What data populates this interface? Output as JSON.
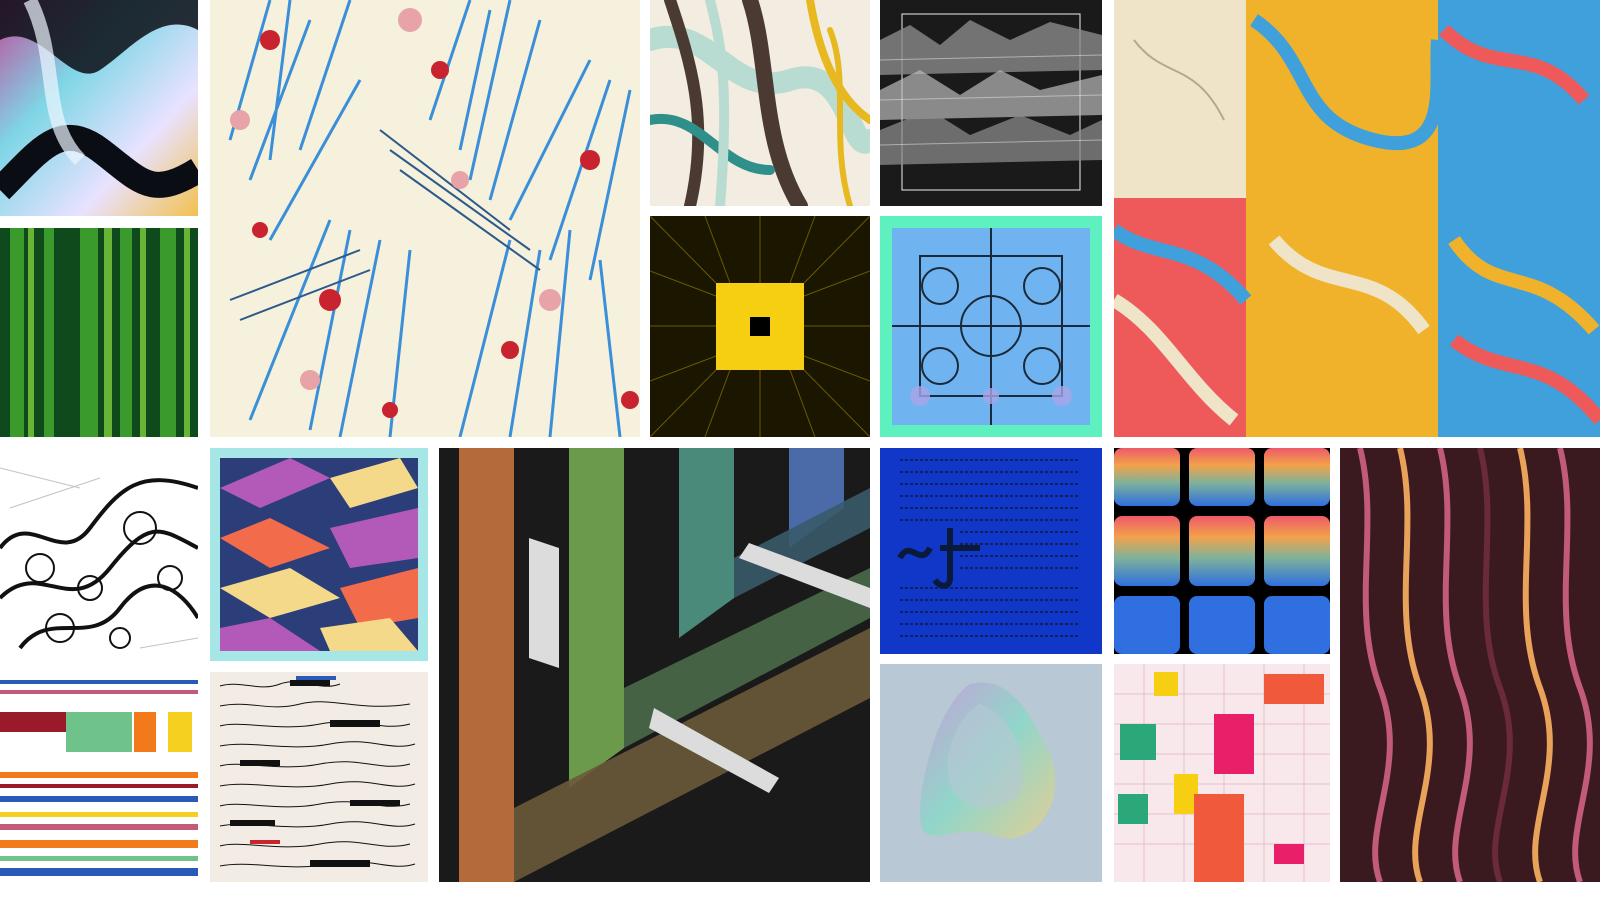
{
  "gallery": {
    "tiles": [
      {
        "id": "iridescent-waves",
        "palette": [
          "#0b0d14",
          "#7fd6e6",
          "#e9e2ff",
          "#f2c14e",
          "#c04a9a"
        ]
      },
      {
        "id": "blue-floral-bursts",
        "palette": [
          "#3a8fd8",
          "#f5f1dc",
          "#c8232f",
          "#e8a3a8",
          "#2d5a8a"
        ]
      },
      {
        "id": "flowing-stripes",
        "palette": [
          "#b9dcd2",
          "#4a3a32",
          "#e8b820",
          "#2f8f8a",
          "#f2ece1"
        ]
      },
      {
        "id": "grey-ridges",
        "palette": [
          "#1a1a1a",
          "#8a8a8a",
          "#ededed"
        ]
      },
      {
        "id": "marbled-quilt",
        "palette": [
          "#3fa0dc",
          "#f0b22a",
          "#ee5a5a",
          "#efe3c8"
        ]
      },
      {
        "id": "green-circuit",
        "palette": [
          "#0f4a1c",
          "#3a9a2c",
          "#7fcf3a",
          "#1a6a2a"
        ]
      },
      {
        "id": "yellow-square-tunnel",
        "palette": [
          "#1a1600",
          "#f7cf12",
          "#6b5a00",
          "#000000"
        ]
      },
      {
        "id": "mint-ornament",
        "palette": [
          "#5ff0c0",
          "#6fb4f0",
          "#1a2a3a",
          "#a9a4e8"
        ]
      },
      {
        "id": "black-ink-swirls",
        "palette": [
          "#ffffff",
          "#111111",
          "#9a9a9a"
        ]
      },
      {
        "id": "isometric-blocks",
        "palette": [
          "#a6e6e6",
          "#b35ab8",
          "#f26b4a",
          "#f5d98a",
          "#2c3e7a"
        ]
      },
      {
        "id": "rainbow-corridor",
        "palette": [
          "#1a1a1a",
          "#b46a3a",
          "#6b9a4a",
          "#4a8a7a",
          "#4a6aa8"
        ]
      },
      {
        "id": "blue-script",
        "palette": [
          "#1137c9",
          "#0a1a3a"
        ]
      },
      {
        "id": "gradient-grid",
        "palette": [
          "#ee5a6a",
          "#f2a24a",
          "#7fb29a",
          "#2f6fe0",
          "#000000"
        ]
      },
      {
        "id": "pink-wave-weave",
        "palette": [
          "#3a1a1e",
          "#c25a7a",
          "#e8a25a",
          "#6a2a3a"
        ]
      },
      {
        "id": "horizontal-stripes",
        "palette": [
          "#ffffff",
          "#9a1a2a",
          "#6fc28a",
          "#f5d020",
          "#f27a1a"
        ]
      },
      {
        "id": "handwriting-redacted",
        "palette": [
          "#f2ece4",
          "#111111",
          "#c8232f",
          "#2a5ab8"
        ]
      },
      {
        "id": "oil-slick",
        "palette": [
          "#b8c8d4",
          "#c89ad8",
          "#8ad8c8",
          "#e8d08a"
        ]
      },
      {
        "id": "isometric-city",
        "palette": [
          "#f8e8ec",
          "#e8206a",
          "#f05a3a",
          "#f7cf12",
          "#2aa87a"
        ]
      }
    ]
  }
}
